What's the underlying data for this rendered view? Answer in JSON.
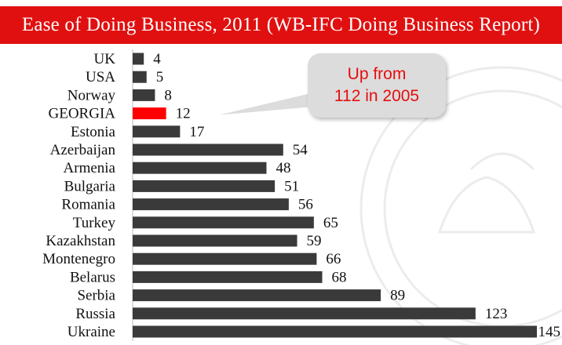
{
  "header": {
    "title": "Ease of Doing Business, 2011 (WB-IFC Doing Business Report)"
  },
  "callout": {
    "line1": "Up from",
    "line2": "112 in 2005"
  },
  "colors": {
    "title_bg": "#e01010",
    "bar_default": "#3a3a3a",
    "bar_highlight": "#ff0000",
    "callout_bg": "#dcdcdc",
    "callout_text": "#e60d0d"
  },
  "chart_data": {
    "type": "bar",
    "orientation": "horizontal",
    "title": "Ease of Doing Business, 2011 (WB-IFC Doing Business Report)",
    "categories": [
      "UK",
      "USA",
      "Norway",
      "GEORGIA",
      "Estonia",
      "Azerbaijan",
      "Armenia",
      "Bulgaria",
      "Romania",
      "Turkey",
      "Kazakhstan",
      "Montenegro",
      "Belarus",
      "Serbia",
      "Russia",
      "Ukraine"
    ],
    "values": [
      4,
      5,
      8,
      12,
      17,
      54,
      48,
      51,
      56,
      65,
      59,
      66,
      68,
      89,
      123,
      145
    ],
    "highlight": "GEORGIA",
    "xlim": [
      0,
      145
    ],
    "grid": false,
    "legend": "none"
  }
}
